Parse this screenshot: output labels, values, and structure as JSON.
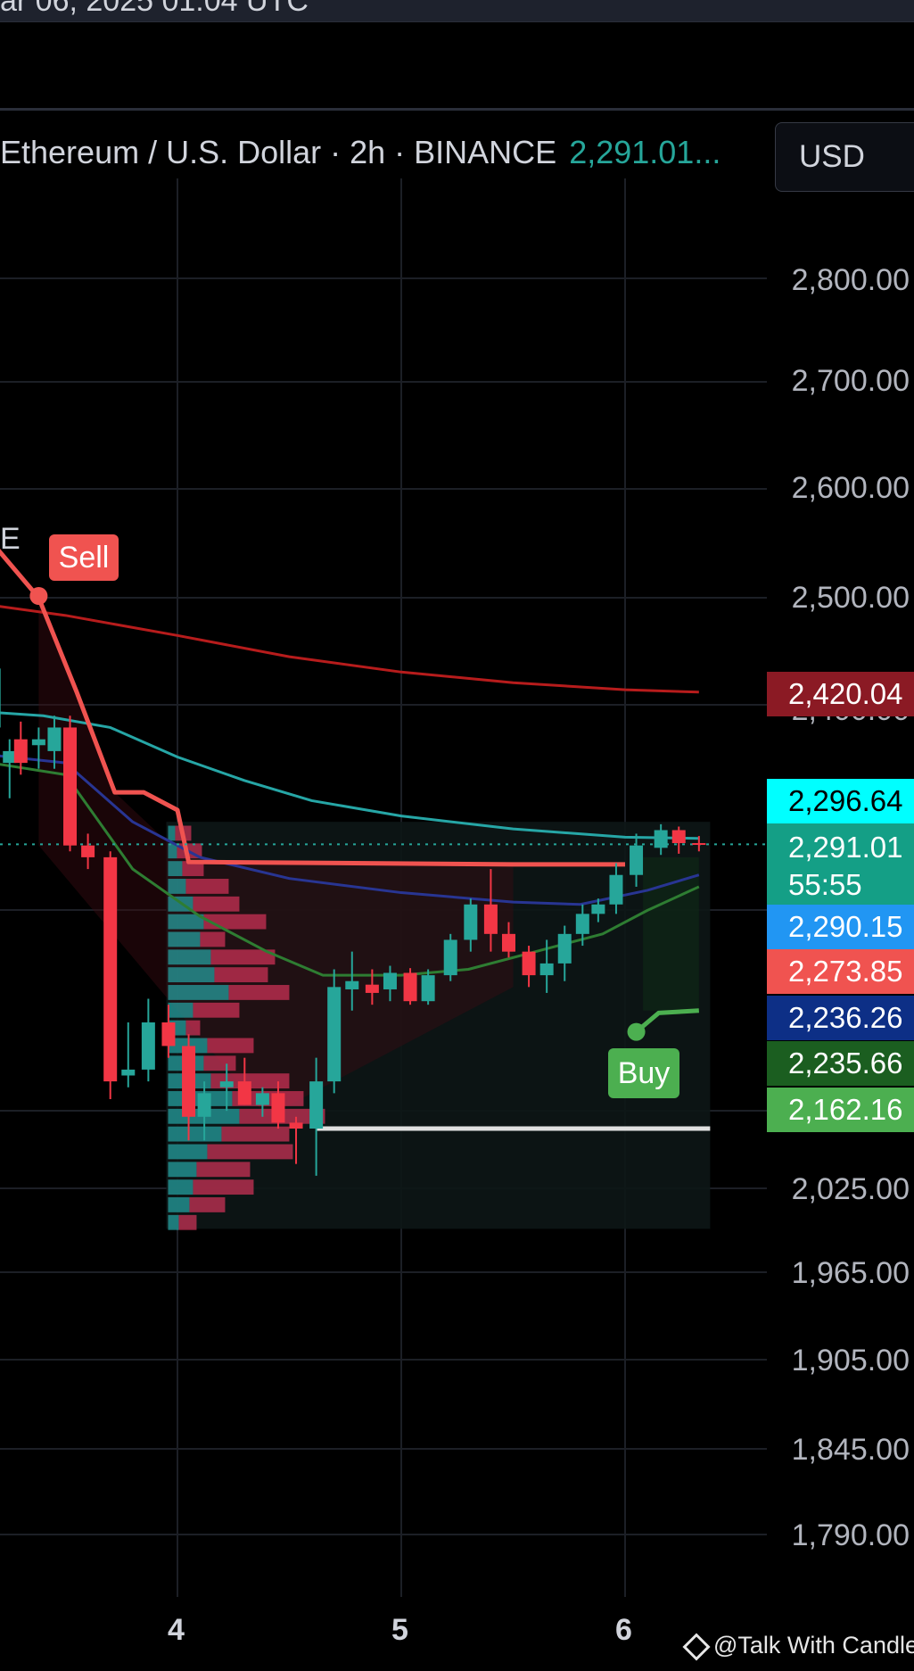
{
  "top_bar_text": "ar 06, 2025 01:04 UTC",
  "header": {
    "title": "Ethereum / U.S. Dollar · 2h · BINANCE",
    "last_price": "2,291.01..."
  },
  "currency_selector": {
    "label": "USD"
  },
  "left_edge_label": "E",
  "signals": {
    "sell": "Sell",
    "buy": "Buy"
  },
  "price_tags": [
    {
      "value": "2,420.04",
      "color": "#8b1a24",
      "text_color": "#ffffff"
    },
    {
      "value": "2,296.64",
      "color": "#00ffff",
      "text_color": "#000000"
    },
    {
      "value": "2,291.01",
      "sub": "55:55",
      "color": "#149f86",
      "text_color": "#ffffff"
    },
    {
      "value": "2,290.15",
      "color": "#2196f3",
      "text_color": "#ffffff"
    },
    {
      "value": "2,273.85",
      "color": "#f05350",
      "text_color": "#ffffff"
    },
    {
      "value": "2,236.26",
      "color": "#0d2f86",
      "text_color": "#ffffff"
    },
    {
      "value": "2,235.66",
      "color": "#1b5e20",
      "text_color": "#ffffff"
    },
    {
      "value": "2,162.16",
      "color": "#4caf50",
      "text_color": "#ffffff"
    }
  ],
  "watermark": "@Talk With Candle",
  "chart_data": {
    "type": "candlestick",
    "symbol": "Ethereum / U.S. Dollar",
    "interval": "2h",
    "exchange": "BINANCE",
    "y_tick_labels": [
      "2,800.00",
      "2,700.00",
      "2,600.00",
      "2,500.00",
      "2,400.00",
      "2,025.00",
      "1,965.00",
      "1,905.00",
      "1,845.00",
      "1,790.00"
    ],
    "x_tick_labels": [
      "4",
      "5",
      "6"
    ],
    "x_ticks": [
      4,
      5,
      6
    ],
    "ohlc": [
      {
        "t": 3.18,
        "o": 2390,
        "h": 2450,
        "l": 2360,
        "c": 2440
      },
      {
        "t": 3.25,
        "o": 2360,
        "h": 2380,
        "l": 2330,
        "c": 2370
      },
      {
        "t": 3.3,
        "o": 2380,
        "h": 2395,
        "l": 2350,
        "c": 2360
      },
      {
        "t": 3.38,
        "o": 2375,
        "h": 2390,
        "l": 2355,
        "c": 2380
      },
      {
        "t": 3.45,
        "o": 2370,
        "h": 2400,
        "l": 2355,
        "c": 2390
      },
      {
        "t": 3.52,
        "o": 2390,
        "h": 2400,
        "l": 2285,
        "c": 2290
      },
      {
        "t": 3.6,
        "o": 2290,
        "h": 2300,
        "l": 2270,
        "c": 2280
      },
      {
        "t": 3.7,
        "o": 2280,
        "h": 2285,
        "l": 2075,
        "c": 2090
      },
      {
        "t": 3.78,
        "o": 2095,
        "h": 2140,
        "l": 2085,
        "c": 2100
      },
      {
        "t": 3.87,
        "o": 2100,
        "h": 2160,
        "l": 2090,
        "c": 2140
      },
      {
        "t": 3.96,
        "o": 2140,
        "h": 2155,
        "l": 2110,
        "c": 2120
      },
      {
        "t": 4.05,
        "o": 2120,
        "h": 2130,
        "l": 2040,
        "c": 2060
      },
      {
        "t": 4.12,
        "o": 2060,
        "h": 2090,
        "l": 2040,
        "c": 2080
      },
      {
        "t": 4.22,
        "o": 2085,
        "h": 2105,
        "l": 2065,
        "c": 2090
      },
      {
        "t": 4.3,
        "o": 2090,
        "h": 2110,
        "l": 2070,
        "c": 2070
      },
      {
        "t": 4.38,
        "o": 2070,
        "h": 2085,
        "l": 2060,
        "c": 2080
      },
      {
        "t": 4.45,
        "o": 2080,
        "h": 2090,
        "l": 2050,
        "c": 2055
      },
      {
        "t": 4.53,
        "o": 2055,
        "h": 2060,
        "l": 2020,
        "c": 2050
      },
      {
        "t": 4.62,
        "o": 2050,
        "h": 2110,
        "l": 2010,
        "c": 2090
      },
      {
        "t": 4.7,
        "o": 2090,
        "h": 2185,
        "l": 2080,
        "c": 2170
      },
      {
        "t": 4.78,
        "o": 2168,
        "h": 2200,
        "l": 2150,
        "c": 2175
      },
      {
        "t": 4.87,
        "o": 2172,
        "h": 2185,
        "l": 2155,
        "c": 2165
      },
      {
        "t": 4.95,
        "o": 2168,
        "h": 2188,
        "l": 2158,
        "c": 2182
      },
      {
        "t": 5.04,
        "o": 2182,
        "h": 2186,
        "l": 2155,
        "c": 2158
      },
      {
        "t": 5.12,
        "o": 2158,
        "h": 2185,
        "l": 2155,
        "c": 2180
      },
      {
        "t": 5.22,
        "o": 2180,
        "h": 2215,
        "l": 2175,
        "c": 2210
      },
      {
        "t": 5.31,
        "o": 2210,
        "h": 2245,
        "l": 2200,
        "c": 2240
      },
      {
        "t": 5.4,
        "o": 2240,
        "h": 2270,
        "l": 2200,
        "c": 2215
      },
      {
        "t": 5.48,
        "o": 2215,
        "h": 2225,
        "l": 2195,
        "c": 2200
      },
      {
        "t": 5.57,
        "o": 2200,
        "h": 2205,
        "l": 2170,
        "c": 2180
      },
      {
        "t": 5.65,
        "o": 2180,
        "h": 2210,
        "l": 2165,
        "c": 2190
      },
      {
        "t": 5.73,
        "o": 2190,
        "h": 2222,
        "l": 2175,
        "c": 2215
      },
      {
        "t": 5.81,
        "o": 2215,
        "h": 2240,
        "l": 2205,
        "c": 2232
      },
      {
        "t": 5.88,
        "o": 2232,
        "h": 2245,
        "l": 2225,
        "c": 2240
      },
      {
        "t": 5.96,
        "o": 2240,
        "h": 2275,
        "l": 2232,
        "c": 2265
      },
      {
        "t": 6.05,
        "o": 2265,
        "h": 2300,
        "l": 2255,
        "c": 2290
      },
      {
        "t": 6.16,
        "o": 2288,
        "h": 2308,
        "l": 2282,
        "c": 2303
      },
      {
        "t": 6.24,
        "o": 2303,
        "h": 2306,
        "l": 2283,
        "c": 2292
      },
      {
        "t": 6.33,
        "o": 2292,
        "h": 2298,
        "l": 2285,
        "c": 2291
      }
    ],
    "lines": [
      {
        "name": "",
        "color": "#b71c1c",
        "points": [
          [
            3.0,
            2498
          ],
          [
            3.5,
            2485
          ],
          [
            4.0,
            2468
          ],
          [
            4.5,
            2450
          ],
          [
            5.0,
            2437
          ],
          [
            5.5,
            2428
          ],
          [
            6.0,
            2422
          ],
          [
            6.33,
            2420
          ]
        ]
      },
      {
        "name": "",
        "color": "#26a6a6",
        "points": [
          [
            3.0,
            2405
          ],
          [
            3.4,
            2400
          ],
          [
            3.7,
            2390
          ],
          [
            4.0,
            2365
          ],
          [
            4.3,
            2345
          ],
          [
            4.6,
            2328
          ],
          [
            5.0,
            2315
          ],
          [
            5.5,
            2304
          ],
          [
            6.0,
            2297
          ],
          [
            6.33,
            2296
          ]
        ]
      },
      {
        "name": "",
        "color": "#283593",
        "points": [
          [
            3.0,
            2370
          ],
          [
            3.5,
            2360
          ],
          [
            3.8,
            2310
          ],
          [
            4.1,
            2280
          ],
          [
            4.5,
            2262
          ],
          [
            5.0,
            2250
          ],
          [
            5.5,
            2242
          ],
          [
            5.8,
            2240
          ],
          [
            6.1,
            2252
          ],
          [
            6.33,
            2265
          ]
        ]
      },
      {
        "name": "",
        "color": "#2e7d32",
        "points": [
          [
            3.0,
            2365
          ],
          [
            3.5,
            2350
          ],
          [
            3.8,
            2270
          ],
          [
            4.1,
            2230
          ],
          [
            4.4,
            2200
          ],
          [
            4.65,
            2180
          ],
          [
            5.0,
            2180
          ],
          [
            5.3,
            2185
          ],
          [
            5.6,
            2200
          ],
          [
            5.9,
            2215
          ],
          [
            6.1,
            2235
          ],
          [
            6.33,
            2255
          ]
        ]
      },
      {
        "name": "",
        "color": "#f05350",
        "points": [
          [
            3.0,
            2585
          ],
          [
            3.38,
            2500
          ],
          [
            3.55,
            2420
          ],
          [
            3.72,
            2335
          ],
          [
            3.85,
            2335
          ],
          [
            4.0,
            2320
          ],
          [
            4.05,
            2276
          ],
          [
            5.5,
            2274
          ],
          [
            6.0,
            2274
          ]
        ]
      },
      {
        "name": "",
        "color": "#4caf50",
        "points": [
          [
            6.05,
            2132
          ],
          [
            6.15,
            2148
          ],
          [
            6.33,
            2150
          ]
        ]
      }
    ],
    "horizontal_lines": [
      {
        "value": 2291.01,
        "style": "dotted",
        "color": "#26a69a"
      },
      {
        "value": 2050,
        "style": "solid",
        "color": "#e0e0e0"
      }
    ],
    "signals": [
      {
        "t": 3.38,
        "price": 2500,
        "label": "Sell"
      },
      {
        "t": 6.05,
        "price": 2132,
        "label": "Buy"
      }
    ],
    "volume_profile": {
      "x_start": 3.95,
      "x_end": 6.38,
      "rows": [
        {
          "price": 2300,
          "up": 4,
          "down": 9
        },
        {
          "price": 2285,
          "up": 5,
          "down": 14
        },
        {
          "price": 2270,
          "up": 8,
          "down": 12
        },
        {
          "price": 2255,
          "up": 10,
          "down": 24
        },
        {
          "price": 2240,
          "up": 14,
          "down": 26
        },
        {
          "price": 2225,
          "up": 20,
          "down": 35
        },
        {
          "price": 2210,
          "up": 18,
          "down": 14
        },
        {
          "price": 2195,
          "up": 24,
          "down": 36
        },
        {
          "price": 2180,
          "up": 26,
          "down": 30
        },
        {
          "price": 2165,
          "up": 34,
          "down": 34
        },
        {
          "price": 2150,
          "up": 14,
          "down": 26
        },
        {
          "price": 2135,
          "up": 10,
          "down": 8
        },
        {
          "price": 2120,
          "up": 22,
          "down": 26
        },
        {
          "price": 2105,
          "up": 20,
          "down": 18
        },
        {
          "price": 2090,
          "up": 24,
          "down": 44
        },
        {
          "price": 2075,
          "up": 36,
          "down": 40
        },
        {
          "price": 2060,
          "up": 40,
          "down": 48
        },
        {
          "price": 2045,
          "up": 30,
          "down": 38
        },
        {
          "price": 2030,
          "up": 22,
          "down": 48
        },
        {
          "price": 2015,
          "up": 16,
          "down": 30
        },
        {
          "price": 2000,
          "up": 14,
          "down": 34
        },
        {
          "price": 1985,
          "up": 12,
          "down": 20
        },
        {
          "price": 1970,
          "up": 6,
          "down": 10
        }
      ]
    },
    "colors": {
      "up": "#26a69a",
      "down": "#f23645",
      "grid": "#1c1f26"
    }
  }
}
